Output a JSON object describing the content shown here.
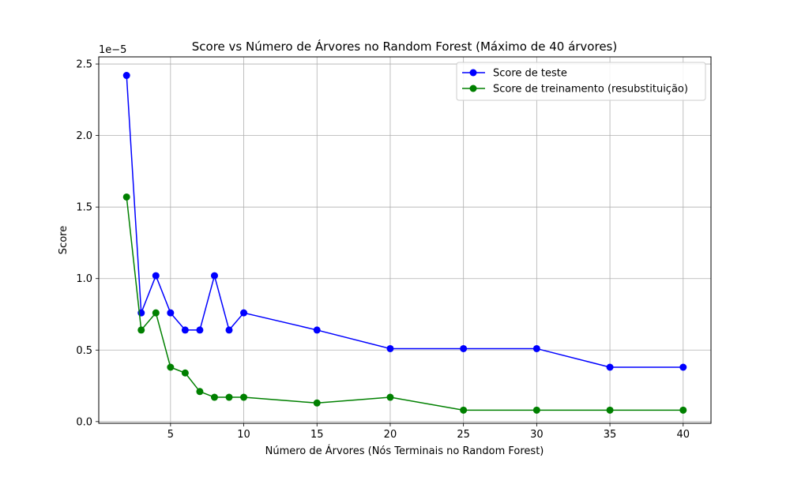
{
  "chart_data": {
    "type": "line",
    "title": "Score vs Número de Árvores no Random Forest (Máximo de 40 árvores)",
    "xlabel": "Número de Árvores (Nós Terminais no Random Forest)",
    "ylabel": "Score",
    "y_offset_label": "1e−5",
    "xlim": [
      0.1,
      41.9
    ],
    "ylim": [
      -1.2e-07,
      2.55e-05
    ],
    "x_ticks": [
      5,
      10,
      15,
      20,
      25,
      30,
      35,
      40
    ],
    "x_tick_labels": [
      "5",
      "10",
      "15",
      "20",
      "25",
      "30",
      "35",
      "40"
    ],
    "y_ticks": [
      0,
      5e-06,
      1e-05,
      1.5e-05,
      2e-05,
      2.5e-05
    ],
    "y_tick_labels": [
      "0.0",
      "0.5",
      "1.0",
      "1.5",
      "2.0",
      "2.5"
    ],
    "grid": true,
    "legend_position": "top-right",
    "x": [
      2,
      3,
      4,
      5,
      6,
      7,
      8,
      9,
      10,
      15,
      20,
      25,
      30,
      35,
      40
    ],
    "series": [
      {
        "name": "Score de teste",
        "color": "#0000ff",
        "values": [
          2.42e-05,
          7.6e-06,
          1.02e-05,
          7.6e-06,
          6.4e-06,
          6.4e-06,
          1.02e-05,
          6.4e-06,
          7.6e-06,
          6.4e-06,
          5.1e-06,
          5.1e-06,
          5.1e-06,
          3.8e-06,
          3.8e-06
        ]
      },
      {
        "name": "Score de treinamento (resubstituição)",
        "color": "#008000",
        "values": [
          1.57e-05,
          6.4e-06,
          7.6e-06,
          3.8e-06,
          3.4e-06,
          2.1e-06,
          1.7e-06,
          1.7e-06,
          1.7e-06,
          1.3e-06,
          1.7e-06,
          8e-07,
          8e-07,
          8e-07,
          8e-07
        ]
      }
    ]
  }
}
